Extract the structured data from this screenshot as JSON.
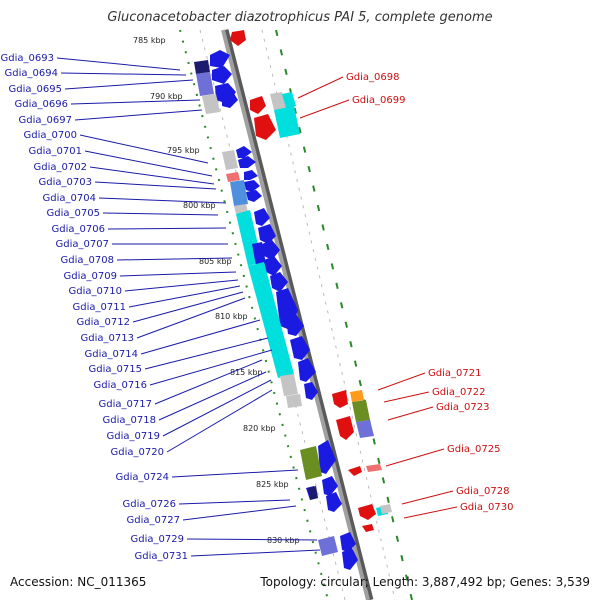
{
  "title": "Gluconacetobacter diazotrophicus PAI 5, complete genome",
  "accession": "Accession: NC_011365",
  "summary": "Topology: circular; Length: 3,887,492 bp; Genes: 3,539",
  "colors": {
    "left_label": "#1a1aa8",
    "right_label": "#cc1010",
    "backbone": "#8a8a8a",
    "track": "#2a8a2a"
  },
  "kbp_ticks": [
    "785 kbp",
    "790 kbp",
    "795 kbp",
    "800 kbp",
    "805 kbp",
    "810 kbp",
    "815 kbp",
    "820 kbp",
    "825 kbp",
    "830 kbp"
  ],
  "left_genes": [
    "Gdia_0693",
    "Gdia_0694",
    "Gdia_0695",
    "Gdia_0696",
    "Gdia_0697",
    "Gdia_0700",
    "Gdia_0701",
    "Gdia_0702",
    "Gdia_0703",
    "Gdia_0704",
    "Gdia_0705",
    "Gdia_0706",
    "Gdia_0707",
    "Gdia_0708",
    "Gdia_0709",
    "Gdia_0710",
    "Gdia_0711",
    "Gdia_0712",
    "Gdia_0713",
    "Gdia_0714",
    "Gdia_0715",
    "Gdia_0716",
    "Gdia_0717",
    "Gdia_0718",
    "Gdia_0719",
    "Gdia_0720",
    "Gdia_0724",
    "Gdia_0726",
    "Gdia_0727",
    "Gdia_0729",
    "Gdia_0731"
  ],
  "right_genes": [
    "Gdia_0698",
    "Gdia_0699",
    "Gdia_0721",
    "Gdia_0722",
    "Gdia_0723",
    "Gdia_0725",
    "Gdia_0728",
    "Gdia_0730"
  ]
}
